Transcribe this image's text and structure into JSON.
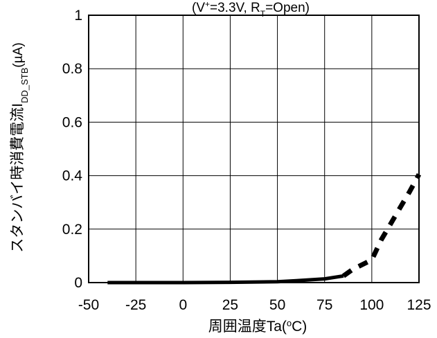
{
  "chart_data": {
    "type": "line",
    "title": {
      "prefix": "(V",
      "v_sup": "+",
      "middle": "=3.3V, R",
      "r_sub": "T",
      "suffix": "=Open)"
    },
    "xlabel": {
      "main": "周囲温度",
      "symbol": "Ta",
      "unit_prefix": "(",
      "unit_sup": "o",
      "unit_suffix": "C)"
    },
    "ylabel": {
      "main": "スタンバイ時消費電流",
      "symbol": "I",
      "symbol_sub": "DD_STB",
      "unit": "(µA)"
    },
    "xlim": [
      -50,
      125
    ],
    "ylim": [
      0,
      1
    ],
    "x_ticks": [
      -50,
      -25,
      0,
      25,
      50,
      75,
      100,
      125
    ],
    "x_tick_labels": [
      "-50",
      "-25",
      "0",
      "25",
      "50",
      "75",
      "100",
      "125"
    ],
    "y_ticks": [
      0,
      0.2,
      0.4,
      0.6,
      0.8,
      1
    ],
    "y_tick_labels": [
      "0",
      "0.2",
      "0.4",
      "0.6",
      "0.8",
      "1"
    ],
    "grid": true,
    "series": [
      {
        "style": "solid",
        "color": "#000000",
        "x": [
          -40,
          -25,
          0,
          25,
          50,
          60,
          75,
          85
        ],
        "y": [
          0,
          0,
          0,
          0.001,
          0.003,
          0.007,
          0.014,
          0.025
        ]
      },
      {
        "style": "dashed",
        "color": "#000000",
        "x": [
          85,
          90,
          100,
          105,
          110,
          115,
          120,
          125
        ],
        "y": [
          0.025,
          0.05,
          0.085,
          0.16,
          0.22,
          0.28,
          0.34,
          0.405
        ]
      }
    ]
  }
}
